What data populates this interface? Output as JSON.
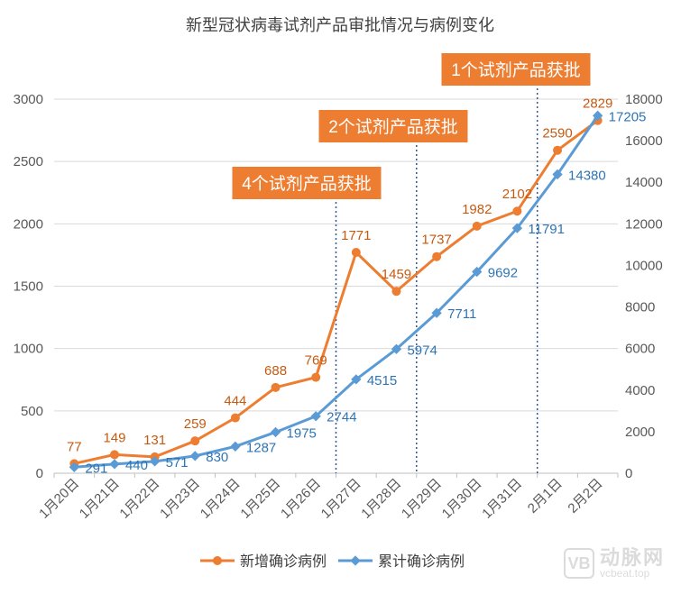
{
  "chart_data": {
    "type": "line",
    "title": "新型冠状病毒试剂产品审批情况与病例变化",
    "categories": [
      "1月20日",
      "1月21日",
      "1月22日",
      "1月23日",
      "1月24日",
      "1月25日",
      "1月26日",
      "1月27日",
      "1月28日",
      "1月29日",
      "1月30日",
      "1月31日",
      "2月1日",
      "2月2日"
    ],
    "series": [
      {
        "name": "新增确诊病例",
        "axis": "left",
        "color": "#ED7D31",
        "values": [
          77,
          149,
          131,
          259,
          444,
          688,
          769,
          1771,
          1459,
          1737,
          1982,
          2102,
          2590,
          2829
        ]
      },
      {
        "name": "累计确诊病例",
        "axis": "right",
        "color": "#5B9BD5",
        "values": [
          291,
          440,
          571,
          830,
          1287,
          1975,
          2744,
          4515,
          5974,
          7711,
          9692,
          11791,
          14380,
          17205
        ]
      }
    ],
    "left_axis": {
      "ylim": [
        0,
        3000
      ],
      "ticks": [
        0,
        500,
        1000,
        1500,
        2000,
        2500,
        3000
      ],
      "tick_labels": [
        "0",
        "500",
        "1000",
        "1500",
        "2000",
        "2500",
        "3000"
      ]
    },
    "right_axis": {
      "ylim": [
        0,
        18000
      ],
      "ticks": [
        0,
        2000,
        4000,
        6000,
        8000,
        10000,
        12000,
        14000,
        16000,
        18000
      ],
      "tick_labels": [
        "0",
        "2000",
        "4000",
        "6000",
        "8000",
        "10000",
        "12000",
        "14000",
        "16000",
        "18000"
      ]
    },
    "annotations": [
      {
        "text": "4个试剂产品获批",
        "category": "1月26日",
        "color": "#ED7D31"
      },
      {
        "text": "2个试剂产品获批",
        "category": "1月28日",
        "color": "#ED7D31"
      },
      {
        "text": "1个试剂产品获批",
        "category": "1月31日",
        "color": "#ED7D31"
      }
    ],
    "legend": {
      "position": "bottom",
      "items": [
        "新增确诊病例",
        "累计确诊病例"
      ]
    },
    "grid": true
  },
  "watermark": {
    "cn": "动脉网",
    "en": "vcbeat.top",
    "logo": "VB"
  }
}
